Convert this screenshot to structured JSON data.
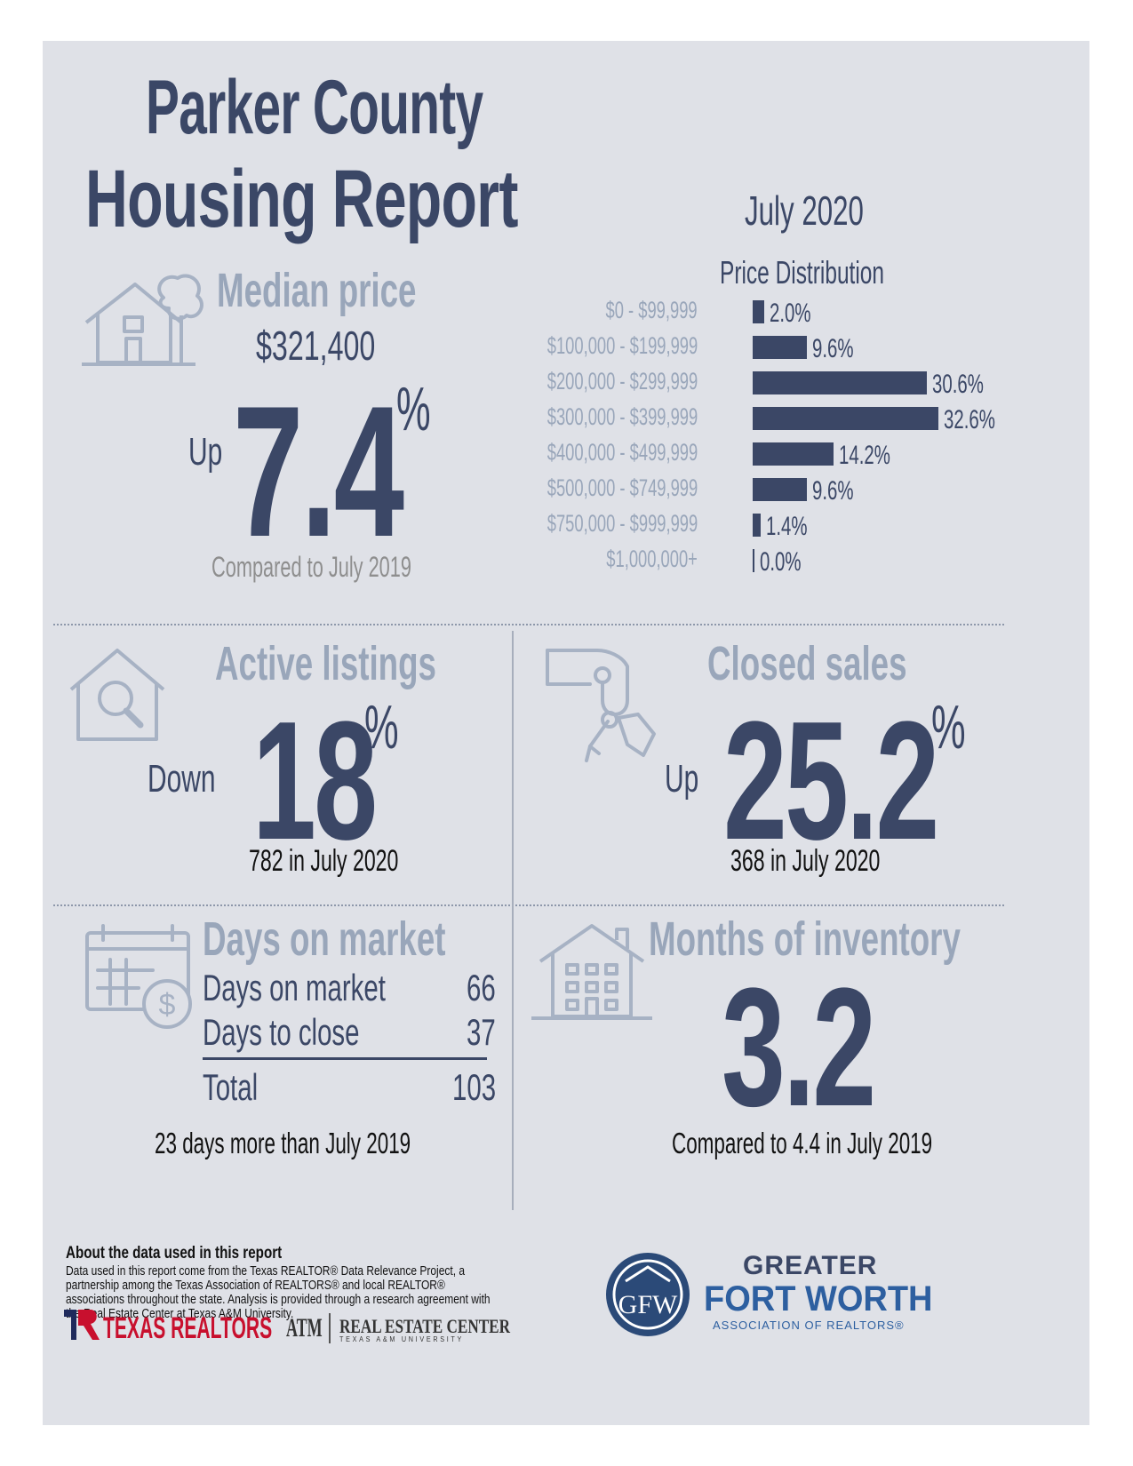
{
  "header": {
    "title_line1": "Parker County",
    "title_line2": "Housing Report",
    "month": "July 2020"
  },
  "colors": {
    "navy": "#3b4766",
    "grey": "#99a6ba",
    "panel": "#dfe1e7",
    "red": "#c8102e"
  },
  "median_price": {
    "title": "Median price",
    "value": "$321,400",
    "direction": "Up",
    "change": "7.4",
    "unit": "%",
    "comparison": "Compared to July 2019",
    "icon": "house-tree-icon"
  },
  "chart_data": {
    "type": "bar",
    "orientation": "horizontal",
    "title": "Price Distribution",
    "categories": [
      "$0 - $99,999",
      "$100,000 - $199,999",
      "$200,000 - $299,999",
      "$300,000 - $399,999",
      "$400,000 - $499,999",
      "$500,000 - $749,999",
      "$750,000 - $999,999",
      "$1,000,000+"
    ],
    "values": [
      2.0,
      9.6,
      30.6,
      32.6,
      14.2,
      9.6,
      1.4,
      0.0
    ],
    "value_labels": [
      "2.0%",
      "9.6%",
      "30.6%",
      "32.6%",
      "14.2%",
      "9.6%",
      "1.4%",
      "0.0%"
    ],
    "grid": false
  },
  "active_listings": {
    "title": "Active listings",
    "direction": "Down",
    "change": "18",
    "unit": "%",
    "note": "782 in July 2020",
    "icon": "house-search-icon"
  },
  "closed_sales": {
    "title": "Closed sales",
    "direction": "Up",
    "change": "25.2",
    "unit": "%",
    "note": "368 in July 2020",
    "icon": "hand-keys-icon"
  },
  "days_on_market": {
    "title": "Days on market",
    "rows": [
      {
        "label": "Days on market",
        "value": "66"
      },
      {
        "label": "Days to close",
        "value": "37"
      }
    ],
    "total_label": "Total",
    "total_value": "103",
    "note": "23 days more than July 2019",
    "icon": "calendar-dollar-icon"
  },
  "months_inventory": {
    "title": "Months of inventory",
    "value": "3.2",
    "note": "Compared to 4.4 in July 2019",
    "icon": "apartment-building-icon"
  },
  "footer": {
    "about_heading": "About the data used in this report",
    "about_body": "Data used in this report come from the Texas REALTOR® Data Relevance Project, a partnership among the Texas Association of REALTORS® and local REALTOR® associations throughout the state. Analysis is provided through a research agreement with the Real Estate Center at Texas A&M University.",
    "logo_texas_realtors": "TEXAS REALTORS",
    "logo_rec": "REAL ESTATE CENTER",
    "logo_rec_sub": "TEXAS A&M UNIVERSITY",
    "logo_tamu": "ATM",
    "logo_gfw_1": "GREATER",
    "logo_gfw_2": "FORT WORTH",
    "logo_gfw_3": "ASSOCIATION OF REALTORS®",
    "logo_gfw_mark": "GFW"
  }
}
